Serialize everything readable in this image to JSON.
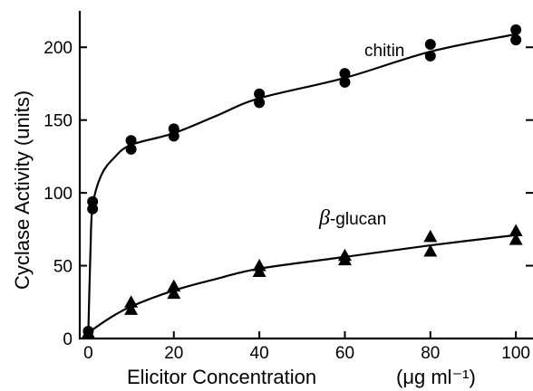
{
  "chart_data": {
    "type": "scatter",
    "xlabel": "Elicitor Concentration",
    "xlabel_units": "(μg ml⁻¹)",
    "ylabel": "Cyclase Activity  (units)",
    "xlim": [
      -2,
      104
    ],
    "ylim": [
      0,
      225
    ],
    "x_ticks": [
      0,
      20,
      40,
      60,
      80,
      100
    ],
    "y_ticks": [
      0,
      50,
      100,
      150,
      200
    ],
    "grid": false,
    "series": [
      {
        "name": "chitin",
        "marker": "circle",
        "points": [
          {
            "x": 0,
            "y": 5
          },
          {
            "x": 1,
            "y": 89
          },
          {
            "x": 1,
            "y": 94
          },
          {
            "x": 10,
            "y": 130
          },
          {
            "x": 10,
            "y": 136
          },
          {
            "x": 20,
            "y": 139
          },
          {
            "x": 20,
            "y": 144
          },
          {
            "x": 40,
            "y": 162
          },
          {
            "x": 40,
            "y": 168
          },
          {
            "x": 60,
            "y": 176
          },
          {
            "x": 60,
            "y": 182
          },
          {
            "x": 80,
            "y": 194
          },
          {
            "x": 80,
            "y": 202
          },
          {
            "x": 100,
            "y": 205
          },
          {
            "x": 100,
            "y": 212
          }
        ],
        "curve": [
          {
            "x": 0,
            "y": 4
          },
          {
            "x": 0.5,
            "y": 60
          },
          {
            "x": 1,
            "y": 91
          },
          {
            "x": 3,
            "y": 112
          },
          {
            "x": 6,
            "y": 124
          },
          {
            "x": 10,
            "y": 133
          },
          {
            "x": 20,
            "y": 141
          },
          {
            "x": 30,
            "y": 153
          },
          {
            "x": 40,
            "y": 165
          },
          {
            "x": 60,
            "y": 179
          },
          {
            "x": 80,
            "y": 197
          },
          {
            "x": 100,
            "y": 209
          }
        ]
      },
      {
        "name": "β-glucan",
        "marker": "triangle",
        "points": [
          {
            "x": 0,
            "y": 4
          },
          {
            "x": 10,
            "y": 20
          },
          {
            "x": 10,
            "y": 25
          },
          {
            "x": 20,
            "y": 31
          },
          {
            "x": 20,
            "y": 36
          },
          {
            "x": 40,
            "y": 46
          },
          {
            "x": 40,
            "y": 50
          },
          {
            "x": 60,
            "y": 54
          },
          {
            "x": 60,
            "y": 57
          },
          {
            "x": 80,
            "y": 60
          },
          {
            "x": 80,
            "y": 70
          },
          {
            "x": 100,
            "y": 68
          },
          {
            "x": 100,
            "y": 74
          }
        ],
        "curve": [
          {
            "x": 0,
            "y": 4
          },
          {
            "x": 5,
            "y": 14
          },
          {
            "x": 10,
            "y": 22
          },
          {
            "x": 20,
            "y": 33
          },
          {
            "x": 30,
            "y": 41
          },
          {
            "x": 40,
            "y": 48
          },
          {
            "x": 60,
            "y": 56
          },
          {
            "x": 80,
            "y": 64
          },
          {
            "x": 100,
            "y": 71
          }
        ]
      }
    ]
  }
}
